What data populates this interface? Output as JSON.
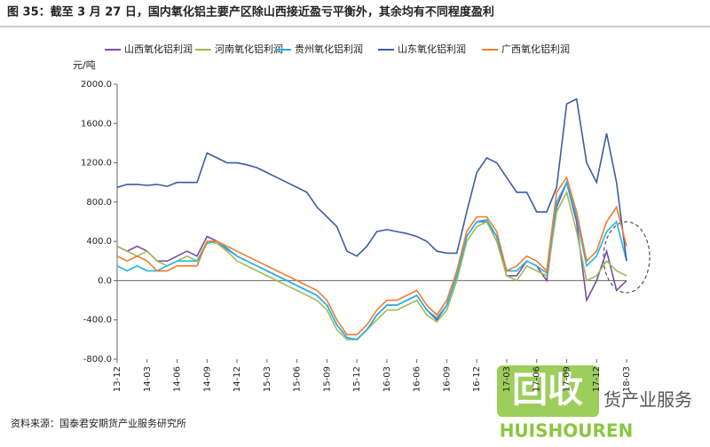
{
  "chart_data": {
    "type": "line",
    "title": "图 35：截至 3 月 27 日，国内氧化铝主要产区除山西接近盈亏平衡外，其余均有不同程度盈利",
    "y_label": "元/吨",
    "source": "资料来源：国泰君安期货产业服务研究所",
    "watermark": {
      "logo": "回收",
      "brand": "HUISHOUREN",
      "side_text": "货产业服务"
    },
    "categories": [
      "13-12",
      null,
      null,
      "14-03",
      null,
      null,
      "14-06",
      null,
      null,
      "14-09",
      null,
      null,
      "14-12",
      null,
      null,
      "15-03",
      null,
      null,
      "15-06",
      null,
      null,
      "15-09",
      null,
      null,
      "15-12",
      null,
      null,
      "16-03",
      null,
      null,
      "16-06",
      null,
      null,
      "16-09",
      null,
      null,
      "16-12",
      null,
      null,
      "17-03",
      null,
      null,
      "17-06",
      null,
      null,
      "17-09",
      null,
      null,
      "17-12",
      null,
      null,
      "18-03"
    ],
    "ylim": [
      -800,
      2000
    ],
    "yticks": [
      {
        "value": -800,
        "label": "-800.0"
      },
      {
        "value": -400,
        "label": "-400.0"
      },
      {
        "value": 0,
        "label": "0.0"
      },
      {
        "value": 400,
        "label": "400.0"
      },
      {
        "value": 800,
        "label": "800.0"
      },
      {
        "value": 1200,
        "label": "1200.0"
      },
      {
        "value": 1600,
        "label": "1600.0"
      },
      {
        "value": 2000,
        "label": "2000.0"
      }
    ],
    "grid": false,
    "series": [
      {
        "name": "山西氧化铝利润",
        "color": "#7a4ea3",
        "values": [
          350,
          300,
          350,
          300,
          200,
          200,
          250,
          300,
          250,
          450,
          400,
          320,
          250,
          200,
          150,
          100,
          50,
          0,
          -50,
          -100,
          -150,
          -250,
          -450,
          -580,
          -600,
          -500,
          -350,
          -250,
          -250,
          -200,
          -150,
          -300,
          -400,
          -250,
          50,
          450,
          600,
          600,
          450,
          50,
          50,
          200,
          150,
          0,
          750,
          1000,
          600,
          -200,
          0,
          300,
          -100,
          0
        ]
      },
      {
        "name": "河南氧化铝利润",
        "color": "#9bbb59",
        "values": [
          350,
          300,
          250,
          300,
          200,
          150,
          200,
          250,
          200,
          400,
          380,
          300,
          200,
          150,
          100,
          50,
          0,
          -50,
          -100,
          -150,
          -200,
          -300,
          -500,
          -600,
          -600,
          -500,
          -400,
          -300,
          -300,
          -250,
          -200,
          -350,
          -420,
          -300,
          0,
          400,
          550,
          600,
          400,
          50,
          0,
          150,
          100,
          50,
          700,
          900,
          500,
          0,
          50,
          200,
          100,
          50
        ]
      },
      {
        "name": "贵州氧化铝利润",
        "color": "#1fb4e8",
        "values": [
          150,
          100,
          150,
          100,
          100,
          150,
          200,
          200,
          200,
          380,
          400,
          330,
          250,
          200,
          150,
          100,
          50,
          0,
          -50,
          -100,
          -150,
          -250,
          -450,
          -580,
          -600,
          -500,
          -350,
          -250,
          -250,
          -200,
          -150,
          -300,
          -380,
          -250,
          50,
          450,
          600,
          620,
          450,
          100,
          100,
          200,
          150,
          80,
          800,
          1000,
          650,
          150,
          250,
          500,
          600,
          200
        ]
      },
      {
        "name": "山东氧化铝利润",
        "color": "#3a5ca8",
        "values": [
          950,
          980,
          980,
          970,
          980,
          960,
          1000,
          1000,
          1000,
          1300,
          1250,
          1200,
          1200,
          1180,
          1150,
          1100,
          1050,
          1000,
          950,
          900,
          750,
          650,
          550,
          300,
          250,
          350,
          500,
          520,
          500,
          480,
          450,
          400,
          300,
          280,
          280,
          700,
          1100,
          1250,
          1200,
          1050,
          900,
          900,
          700,
          700,
          950,
          1800,
          1850,
          1200,
          1000,
          1500,
          1000,
          200
        ]
      },
      {
        "name": "广西氧化铝利润",
        "color": "#f07c31",
        "values": [
          250,
          200,
          250,
          200,
          100,
          100,
          150,
          150,
          150,
          400,
          400,
          350,
          300,
          250,
          200,
          150,
          100,
          50,
          0,
          -50,
          -100,
          -200,
          -400,
          -550,
          -550,
          -450,
          -300,
          -200,
          -200,
          -150,
          -100,
          -250,
          -350,
          -200,
          100,
          500,
          650,
          650,
          500,
          100,
          150,
          250,
          200,
          100,
          900,
          1050,
          700,
          200,
          300,
          600,
          750,
          350
        ]
      }
    ]
  }
}
